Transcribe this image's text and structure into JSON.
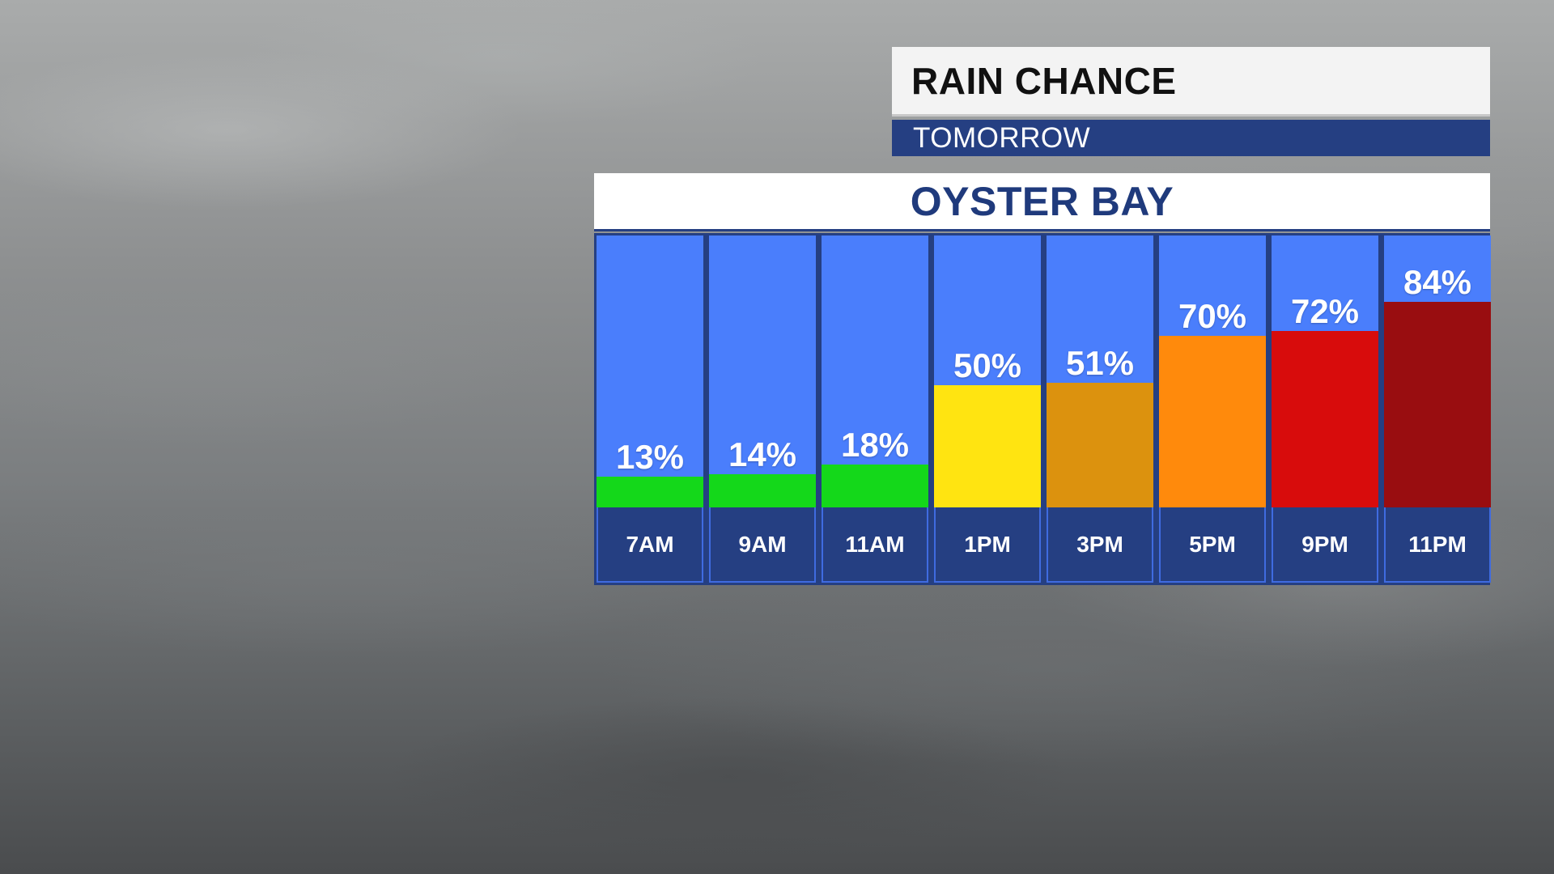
{
  "header": {
    "title": "RAIN CHANCE",
    "subtitle": "TOMORROW"
  },
  "location": "OYSTER BAY",
  "colors": {
    "plot_background": "#4a7efc",
    "panel_navy": "#253f82",
    "low": "#14d81a",
    "moderate": "#ffe411",
    "elevated": "#dc920e",
    "high": "#ff8a0c",
    "very_high": "#d80c0c",
    "extreme": "#990d10"
  },
  "chart_data": {
    "type": "bar",
    "title": "RAIN CHANCE",
    "subtitle": "TOMORROW",
    "location": "OYSTER BAY",
    "categories": [
      "7AM",
      "9AM",
      "11AM",
      "1PM",
      "3PM",
      "5PM",
      "9PM",
      "11PM"
    ],
    "values": [
      13,
      14,
      18,
      50,
      51,
      70,
      72,
      84
    ],
    "value_labels": [
      "13%",
      "14%",
      "18%",
      "50%",
      "51%",
      "70%",
      "72%",
      "84%"
    ],
    "bar_colors": [
      "#14d81a",
      "#14d81a",
      "#14d81a",
      "#ffe411",
      "#dc920e",
      "#ff8a0c",
      "#d80c0c",
      "#990d10"
    ],
    "unit": "%",
    "ylim": [
      0,
      100
    ],
    "grid": false,
    "legend": "none"
  }
}
